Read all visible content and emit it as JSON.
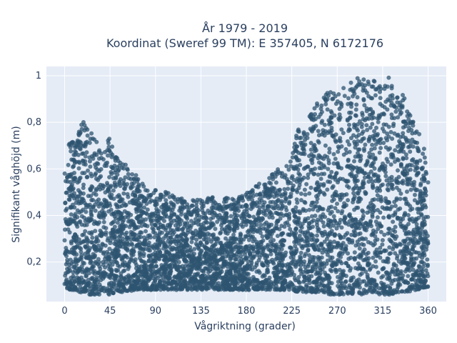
{
  "chart_data": {
    "type": "scatter",
    "title_lines": [
      "År 1979 - 2019",
      "Koordinat (Sweref 99 TM): E 357405, N 6172176"
    ],
    "xlabel": "Vågriktning (grader)",
    "ylabel": "Signifikant våghöjd (m)",
    "xlim": [
      -18,
      378
    ],
    "ylim": [
      0.03,
      1.04
    ],
    "xticks": [
      0,
      45,
      90,
      135,
      180,
      225,
      270,
      315,
      360
    ],
    "xtick_labels": [
      "0",
      "45",
      "90",
      "135",
      "180",
      "225",
      "270",
      "315",
      "360"
    ],
    "yticks": [
      0.2,
      0.4,
      0.6,
      0.8,
      1
    ],
    "ytick_labels": [
      "0,2",
      "0,4",
      "0,6",
      "0,8",
      "1"
    ],
    "grid": true,
    "marker_color": "#2e5470",
    "plot_bgcolor": "#e5ecf6",
    "envelope": {
      "direction_deg": [
        0,
        5,
        10,
        15,
        20,
        25,
        30,
        35,
        40,
        45,
        50,
        60,
        70,
        80,
        90,
        100,
        110,
        120,
        130,
        140,
        150,
        160,
        170,
        180,
        190,
        200,
        210,
        220,
        225,
        230,
        240,
        250,
        260,
        270,
        280,
        290,
        300,
        305,
        310,
        315,
        320,
        325,
        330,
        335,
        340,
        345,
        350,
        355,
        360
      ],
      "min_height_m": [
        0.09,
        0.08,
        0.08,
        0.07,
        0.07,
        0.06,
        0.06,
        0.06,
        0.06,
        0.06,
        0.07,
        0.07,
        0.08,
        0.08,
        0.08,
        0.08,
        0.08,
        0.08,
        0.08,
        0.08,
        0.08,
        0.08,
        0.08,
        0.08,
        0.08,
        0.08,
        0.08,
        0.08,
        0.08,
        0.07,
        0.07,
        0.07,
        0.06,
        0.06,
        0.06,
        0.06,
        0.06,
        0.06,
        0.06,
        0.06,
        0.06,
        0.06,
        0.07,
        0.07,
        0.07,
        0.08,
        0.08,
        0.09,
        0.09
      ],
      "max_height_m": [
        0.62,
        0.73,
        0.71,
        0.78,
        0.81,
        0.77,
        0.73,
        0.71,
        0.68,
        0.75,
        0.66,
        0.62,
        0.58,
        0.52,
        0.51,
        0.51,
        0.49,
        0.47,
        0.47,
        0.48,
        0.48,
        0.48,
        0.47,
        0.5,
        0.54,
        0.55,
        0.6,
        0.62,
        0.66,
        0.76,
        0.82,
        0.89,
        0.93,
        0.94,
        0.97,
        0.99,
        0.99,
        0.98,
        0.98,
        0.97,
        1.0,
        0.98,
        0.95,
        0.92,
        0.87,
        0.81,
        0.76,
        0.72,
        0.62
      ]
    }
  }
}
